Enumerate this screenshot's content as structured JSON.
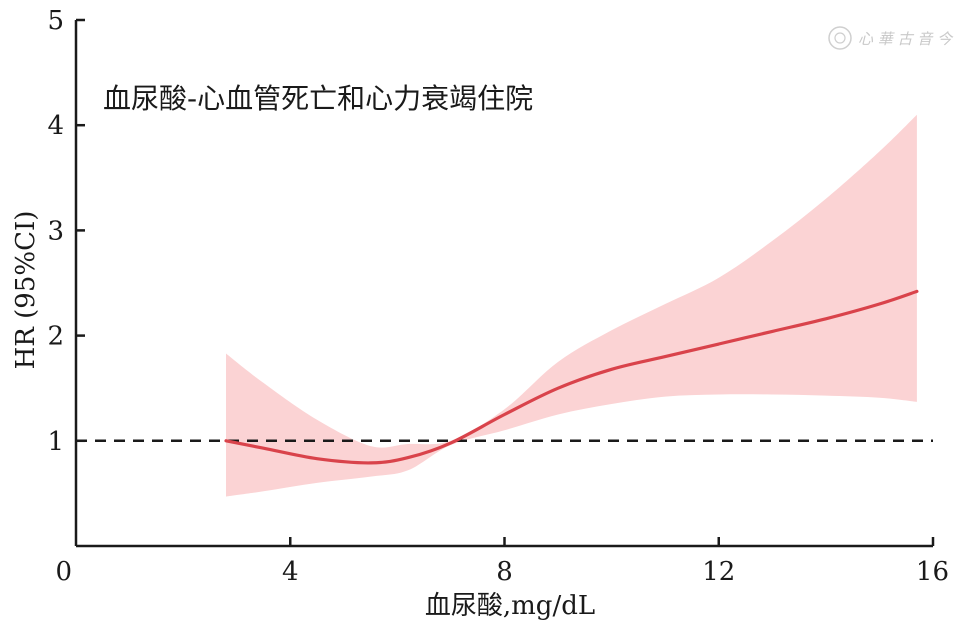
{
  "chart_data": {
    "type": "line",
    "title": "血尿酸-心血管死亡和心力衰竭住院",
    "xlabel": "血尿酸,mg/dL",
    "ylabel": "HR (95%CI)",
    "xlim": [
      0,
      16
    ],
    "ylim": [
      0,
      5
    ],
    "xticks": [
      0,
      4,
      8,
      12,
      16
    ],
    "yticks": [
      1,
      2,
      3,
      4,
      5
    ],
    "reference_line": 1,
    "colors": {
      "line": "#d9434b",
      "band": "#fbd3d4",
      "reference": "#1a1a1a",
      "axis": "#1a1a1a"
    },
    "series": [
      {
        "x": [
          2.8,
          3.5,
          4.5,
          5.5,
          6.2,
          7.0,
          8.0,
          9.0,
          10.0,
          11.0,
          12.0,
          13.0,
          14.0,
          15.0,
          15.7
        ],
        "y": [
          1.0,
          0.93,
          0.83,
          0.79,
          0.84,
          0.98,
          1.25,
          1.5,
          1.68,
          1.8,
          1.92,
          2.04,
          2.16,
          2.3,
          2.42
        ],
        "lower": [
          0.47,
          0.52,
          0.6,
          0.66,
          0.72,
          0.96,
          1.1,
          1.25,
          1.35,
          1.42,
          1.44,
          1.44,
          1.43,
          1.41,
          1.37
        ],
        "upper": [
          1.83,
          1.55,
          1.2,
          0.95,
          0.97,
          1.0,
          1.3,
          1.75,
          2.05,
          2.3,
          2.55,
          2.9,
          3.3,
          3.75,
          4.1
        ]
      }
    ]
  },
  "watermark": {
    "text": "心 華 古 音 今",
    "icon": "seal-logo-icon"
  }
}
